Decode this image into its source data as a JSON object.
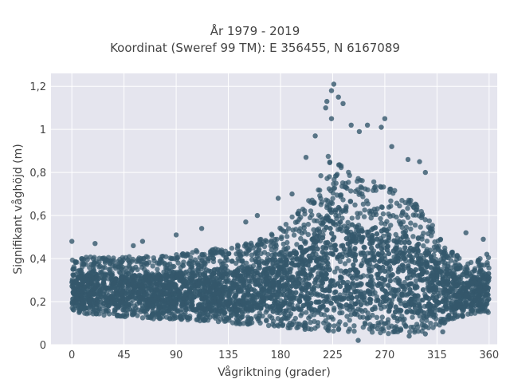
{
  "chart_data": {
    "type": "scatter",
    "title_lines": [
      "År 1979 - 2019",
      "Koordinat (Sweref 99 TM): E 356455, N 6167089"
    ],
    "xlabel": "Vågriktning (grader)",
    "ylabel": "Signifikant våghöjd (m)",
    "xlim": [
      -18,
      367
    ],
    "ylim": [
      0,
      1.26
    ],
    "xticks": [
      0,
      45,
      90,
      135,
      180,
      225,
      270,
      315,
      360
    ],
    "xtick_labels": [
      "0",
      "45",
      "90",
      "135",
      "180",
      "225",
      "270",
      "315",
      "360"
    ],
    "yticks": [
      0,
      0.2,
      0.4,
      0.6,
      0.8,
      1.0,
      1.2
    ],
    "ytick_labels": [
      "0",
      "0,2",
      "0,4",
      "0,6",
      "0,8",
      "1",
      "1,2"
    ],
    "grid": true,
    "colors": {
      "marker": "#34586c",
      "plot_background": "#e5e5ee",
      "grid": "#ffffff"
    },
    "envelope_profile": {
      "description_of_values": "x = direction (degrees), y_min = approximate lower edge of point cloud (m), y_max = approximate upper edge of dense point cloud (m)",
      "x": [
        0,
        20,
        45,
        70,
        90,
        110,
        135,
        160,
        180,
        200,
        210,
        220,
        225,
        230,
        240,
        255,
        270,
        285,
        300,
        315,
        330,
        345,
        360
      ],
      "y_min": [
        0.15,
        0.14,
        0.13,
        0.12,
        0.12,
        0.11,
        0.1,
        0.09,
        0.08,
        0.07,
        0.07,
        0.06,
        0.06,
        0.06,
        0.06,
        0.06,
        0.05,
        0.05,
        0.06,
        0.08,
        0.12,
        0.14,
        0.15
      ],
      "y_max": [
        0.4,
        0.41,
        0.41,
        0.41,
        0.42,
        0.44,
        0.45,
        0.49,
        0.55,
        0.64,
        0.72,
        0.86,
        0.95,
        0.9,
        0.8,
        0.76,
        0.76,
        0.72,
        0.64,
        0.53,
        0.42,
        0.39,
        0.41
      ]
    },
    "notable_points": [
      {
        "x": 226,
        "y": 1.21
      },
      {
        "x": 224,
        "y": 1.18
      },
      {
        "x": 230,
        "y": 1.15
      },
      {
        "x": 220,
        "y": 1.13
      },
      {
        "x": 219,
        "y": 1.1
      },
      {
        "x": 234,
        "y": 1.12
      },
      {
        "x": 224,
        "y": 1.05
      },
      {
        "x": 241,
        "y": 1.02
      },
      {
        "x": 248,
        "y": 0.99
      },
      {
        "x": 255,
        "y": 1.02
      },
      {
        "x": 270,
        "y": 1.05
      },
      {
        "x": 267,
        "y": 1.01
      },
      {
        "x": 276,
        "y": 0.92
      },
      {
        "x": 290,
        "y": 0.86
      },
      {
        "x": 300,
        "y": 0.85
      },
      {
        "x": 305,
        "y": 0.8
      },
      {
        "x": 210,
        "y": 0.97
      },
      {
        "x": 202,
        "y": 0.87
      },
      {
        "x": 190,
        "y": 0.7
      },
      {
        "x": 178,
        "y": 0.68
      },
      {
        "x": 160,
        "y": 0.6
      },
      {
        "x": 150,
        "y": 0.57
      },
      {
        "x": 112,
        "y": 0.54
      },
      {
        "x": 90,
        "y": 0.51
      },
      {
        "x": 61,
        "y": 0.48
      },
      {
        "x": 53,
        "y": 0.46
      },
      {
        "x": 20,
        "y": 0.47
      },
      {
        "x": 0,
        "y": 0.48
      },
      {
        "x": 340,
        "y": 0.52
      },
      {
        "x": 355,
        "y": 0.49
      },
      {
        "x": 358,
        "y": 0.42
      },
      {
        "x": 247,
        "y": 0.02
      },
      {
        "x": 291,
        "y": 0.04
      },
      {
        "x": 305,
        "y": 0.05
      },
      {
        "x": 320,
        "y": 0.06
      }
    ]
  }
}
